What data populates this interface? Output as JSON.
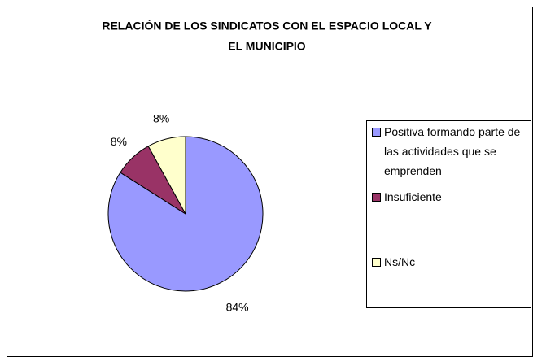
{
  "chart_data": {
    "type": "pie",
    "title": [
      "RELACIÒN DE LOS SINDICATOS CON EL ESPACIO LOCAL Y",
      "EL MUNICIPIO"
    ],
    "categories": [
      "Positiva formando parte de las actividades que se emprenden",
      "Insuficiente",
      "Ns/Nc"
    ],
    "values": [
      84,
      8,
      8
    ],
    "value_labels": [
      "84%",
      "8%",
      "8%"
    ],
    "colors": [
      "#9999ff",
      "#993366",
      "#ffffcc"
    ],
    "legend": "right"
  }
}
